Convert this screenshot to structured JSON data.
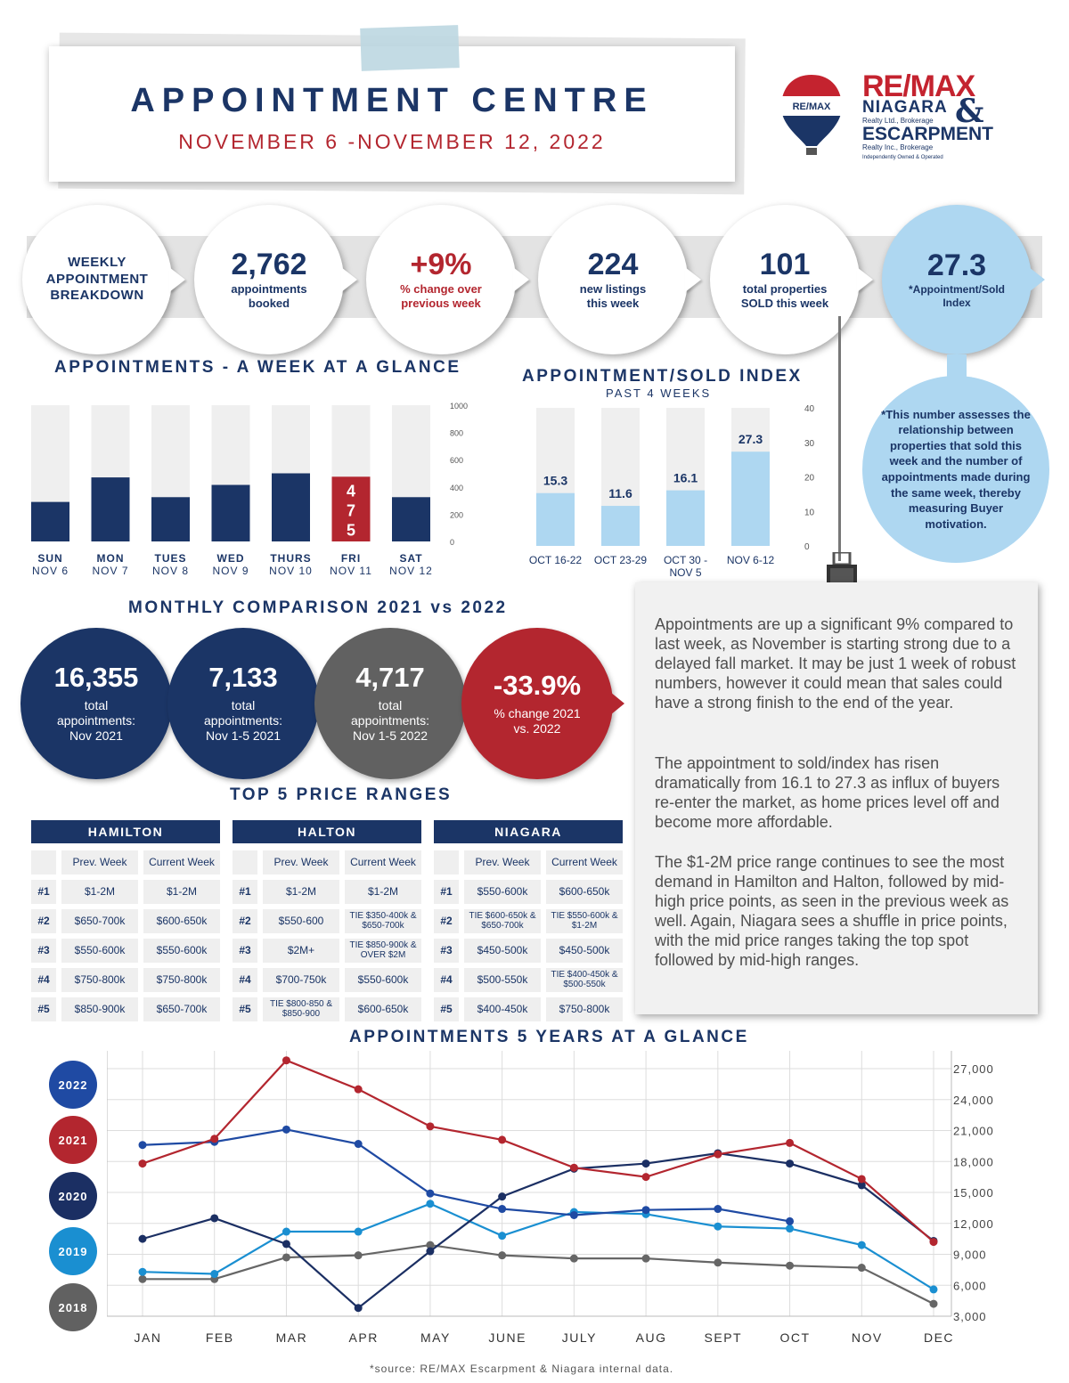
{
  "header": {
    "title": "APPOINTMENT CENTRE",
    "dates": "NOVEMBER 6 -NOVEMBER 12, 2022"
  },
  "logo": {
    "balloon_text": "RE/MAX",
    "brand": "RE/MAX",
    "niagara": "NIAGARA",
    "ampersand": "&",
    "niagara_sub": "Realty Ltd., Brokerage",
    "escarpment": "ESCARPMENT",
    "escarpment_sub": "Realty Inc., Brokerage",
    "independent": "Independently Owned & Operated"
  },
  "breakdown": {
    "label": "WEEKLY APPOINTMENT BREAKDOWN",
    "booked": {
      "value": "2,762",
      "label": "appointments booked"
    },
    "change": {
      "value": "+9%",
      "label": "% change over previous week"
    },
    "listings": {
      "value": "224",
      "label": "new listings this week"
    },
    "sold": {
      "value": "101",
      "label": "total properties SOLD this week"
    },
    "index": {
      "value": "27.3",
      "label": "*Appointment/Sold Index"
    }
  },
  "footnote": "*This number assesses the relationship between properties that sold this week and the number of appointments made during the same week, thereby measuring Buyer motivation.",
  "colors": {
    "navy": "#1b3566",
    "red": "#b3262f",
    "light_blue": "#aed7f1",
    "gray_bar": "#efefef",
    "dark_gray": "#616161",
    "line_2022": "#1f4aa3",
    "line_2021": "#b3262f",
    "line_2020": "#1b2f63",
    "line_2019": "#1a8fd1",
    "line_2018": "#666666"
  },
  "weekly_heading": "APPOINTMENTS - A WEEK AT A GLANCE",
  "index_heading": "APPOINTMENT/SOLD INDEX",
  "index_subheading": "PAST 4 WEEKS",
  "monthly": {
    "heading": "MONTHLY COMPARISON 2021 vs 2022",
    "items": [
      {
        "value": "16,355",
        "label": "total appointments: Nov 2021"
      },
      {
        "value": "7,133",
        "label": "total appointments: Nov 1-5 2021"
      },
      {
        "value": "4,717",
        "label": "total appointments: Nov 1-5 2022"
      },
      {
        "value": "-33.9%",
        "label": "% change 2021 vs. 2022"
      }
    ]
  },
  "price_ranges": {
    "heading": "TOP 5 PRICE RANGES",
    "col_prev": "Prev. Week",
    "col_curr": "Current Week",
    "ranks": [
      "#1",
      "#2",
      "#3",
      "#4",
      "#5"
    ],
    "tables": [
      {
        "name": "HAMILTON",
        "rows": [
          [
            "$1-2M",
            "$1-2M"
          ],
          [
            "$650-700k",
            "$600-650k"
          ],
          [
            "$550-600k",
            "$550-600k"
          ],
          [
            "$750-800k",
            "$750-800k"
          ],
          [
            "$850-900k",
            "$650-700k"
          ]
        ]
      },
      {
        "name": "HALTON",
        "rows": [
          [
            "$1-2M",
            "$1-2M"
          ],
          [
            "$550-600",
            "TIE $350-400k & $650-700k"
          ],
          [
            "$2M+",
            "TIE $850-900k & OVER $2M"
          ],
          [
            "$700-750k",
            "$550-600k"
          ],
          [
            "TIE $800-850 & $850-900",
            "$600-650k"
          ]
        ]
      },
      {
        "name": "NIAGARA",
        "rows": [
          [
            "$550-600k",
            "$600-650k"
          ],
          [
            "TIE $600-650k & $650-700k",
            "TIE $550-600k & $1-2M"
          ],
          [
            "$450-500k",
            "$450-500k"
          ],
          [
            "$500-550k",
            "TIE $400-450k & $500-550k"
          ],
          [
            "$400-450k",
            "$750-800k"
          ]
        ]
      }
    ]
  },
  "commentary": [
    "Appointments are up a significant 9% compared to last week, as November is starting strong due to a delayed fall market. It may be just 1 week of robust numbers, however it could mean that sales could have a strong finish to the end of the year.",
    "The appointment to sold/index has risen dramatically from 16.1 to 27.3 as influx of buyers re-enter the market, as home prices level off and become more affordable.",
    "The $1-2M price range continues to see the most demand in Hamilton and Halton, followed by mid-high price points, as seen in the previous week as well. Again, Niagara sees a shuffle in price points, with the mid price ranges taking the top spot followed by mid-high ranges."
  ],
  "five_year_heading": "APPOINTMENTS 5 YEARS AT A GLANCE",
  "source": "*source:  RE/MAX Escarpment & Niagara internal data.",
  "chart_data": [
    {
      "type": "bar",
      "title": "APPOINTMENTS - A WEEK AT A GLANCE",
      "categories": [
        "SUN",
        "MON",
        "TUES",
        "WED",
        "THURS",
        "FRI",
        "SAT"
      ],
      "category_dates": [
        "NOV 6",
        "NOV 7",
        "NOV 8",
        "NOV 9",
        "NOV 10",
        "NOV 11",
        "NOV 12"
      ],
      "values": [
        290,
        470,
        325,
        415,
        500,
        475,
        325
      ],
      "highlight": {
        "category": "FRI",
        "label": "475"
      },
      "ylim": [
        0,
        1000
      ],
      "yticks": [
        0,
        200,
        400,
        600,
        800,
        1000
      ],
      "grid": false,
      "background_bars": true
    },
    {
      "type": "bar",
      "title": "APPOINTMENT/SOLD INDEX",
      "subtitle": "PAST 4 WEEKS",
      "categories": [
        "OCT 16-22",
        "OCT 23-29",
        "OCT 30 - NOV 5",
        "NOV 6-12"
      ],
      "values": [
        15.3,
        11.6,
        16.1,
        27.3
      ],
      "data_labels": [
        "15.3",
        "11.6",
        "16.1",
        "27.3"
      ],
      "ylim": [
        0,
        40
      ],
      "yticks": [
        0,
        10,
        20,
        30,
        40
      ],
      "grid": false,
      "background_bars": true
    },
    {
      "type": "line",
      "title": "APPOINTMENTS 5 YEARS AT A GLANCE",
      "x": [
        "JAN",
        "FEB",
        "MAR",
        "APR",
        "MAY",
        "JUNE",
        "JULY",
        "AUG",
        "SEPT",
        "OCT",
        "NOV",
        "DEC"
      ],
      "ylim": [
        3000,
        27000
      ],
      "yticks": [
        3000,
        6000,
        9000,
        12000,
        15000,
        18000,
        21000,
        24000,
        27000
      ],
      "ytick_labels": [
        "3,000",
        "6,000",
        "9,000",
        "12,000",
        "15,000",
        "18,000",
        "21,000",
        "24,000",
        "27,000"
      ],
      "grid": true,
      "legend_position": "left",
      "series": [
        {
          "name": "2022",
          "values": [
            19600,
            19900,
            21100,
            19700,
            14900,
            13400,
            12800,
            13300,
            13400,
            12200,
            null,
            null
          ]
        },
        {
          "name": "2021",
          "values": [
            17800,
            20200,
            27800,
            25000,
            21400,
            20100,
            17400,
            16500,
            18700,
            19800,
            16300,
            10200
          ]
        },
        {
          "name": "2020",
          "values": [
            10500,
            12500,
            10000,
            3800,
            9300,
            14600,
            17300,
            17800,
            18800,
            17800,
            15700,
            10300
          ]
        },
        {
          "name": "2019",
          "values": [
            7300,
            7100,
            11200,
            11200,
            13900,
            10800,
            13100,
            12900,
            11700,
            11500,
            9900,
            5600
          ]
        },
        {
          "name": "2018",
          "values": [
            6600,
            6600,
            8700,
            8900,
            9900,
            8900,
            8600,
            8600,
            8200,
            7900,
            7700,
            4200
          ]
        }
      ]
    }
  ]
}
